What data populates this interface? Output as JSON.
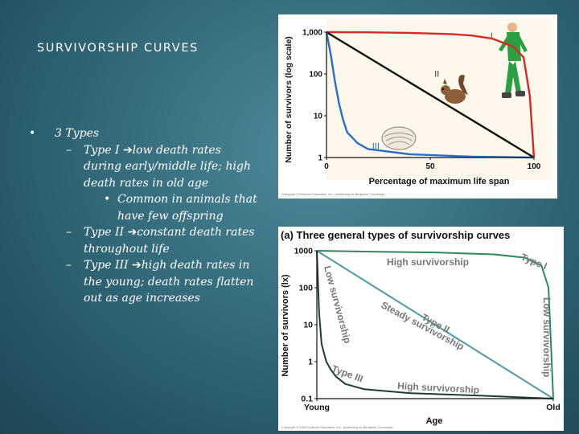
{
  "slide": {
    "title": "SURVIVORSHIP CURVES",
    "bullets": [
      {
        "level": 1,
        "text": "3 Types"
      },
      {
        "level": 2,
        "lead": "Type I",
        "text": "low death rates during early/middle life; high death rates in old age"
      },
      {
        "level": 3,
        "text": "Common in animals that have few offspring"
      },
      {
        "level": 2,
        "lead": "Type II",
        "text": "constant death rates throughout life"
      },
      {
        "level": 2,
        "lead": "Type III",
        "text": "high death rates in the young; death rates flatten out as age increases"
      }
    ]
  },
  "chart_data": [
    {
      "type": "line",
      "title": "",
      "xlabel": "Percentage of maximum life span",
      "ylabel": "Number of survivors (log scale)",
      "x_ticks": [
        "0",
        "50",
        "100"
      ],
      "y_ticks": [
        "1",
        "10",
        "100",
        "1,000"
      ],
      "yscale": "log",
      "xlim": [
        0,
        100
      ],
      "ylim": [
        1,
        1000
      ],
      "series": [
        {
          "name": "I",
          "color": "#d42a2a",
          "x": [
            0,
            20,
            40,
            60,
            70,
            80,
            90,
            95,
            98,
            100
          ],
          "y": [
            1000,
            990,
            960,
            900,
            830,
            700,
            450,
            250,
            30,
            1
          ]
        },
        {
          "name": "II",
          "color": "#111111",
          "x": [
            0,
            100
          ],
          "y": [
            1000,
            1
          ]
        },
        {
          "name": "III",
          "color": "#2a6fc9",
          "x": [
            0,
            2,
            4,
            6,
            8,
            10,
            15,
            20,
            40,
            70,
            100
          ],
          "y": [
            1000,
            300,
            70,
            20,
            8,
            4,
            2.2,
            1.6,
            1.2,
            1.05,
            1
          ]
        }
      ],
      "illustrations": [
        "human-runner",
        "squirrel",
        "oyster-shell"
      ],
      "credit": "Copyright © Pearson Education, Inc., publishing as Benjamin Cummings."
    },
    {
      "type": "line",
      "title": "(a) Three general types of survivorship curves",
      "xlabel": "Age",
      "ylabel": "Number of survivors (lx)",
      "x_ticks": [
        "Young",
        "Old"
      ],
      "y_ticks": [
        "0.1",
        "1",
        "10",
        "100",
        "1000"
      ],
      "yscale": "log",
      "xlim": [
        0,
        100
      ],
      "ylim": [
        0.1,
        1000
      ],
      "series": [
        {
          "name": "Type I",
          "color": "#2e8b57",
          "x": [
            0,
            20,
            50,
            75,
            88,
            95,
            98,
            100
          ],
          "y": [
            1000,
            950,
            900,
            800,
            650,
            400,
            100,
            0.1
          ]
        },
        {
          "name": "Type II",
          "color": "#4f9aa6",
          "x": [
            0,
            100
          ],
          "y": [
            1000,
            0.1
          ]
        },
        {
          "name": "Type III",
          "color": "#1f3d2f",
          "x": [
            0,
            1,
            2,
            4,
            6,
            8,
            12,
            20,
            40,
            70,
            100
          ],
          "y": [
            1000,
            20,
            3,
            1,
            0.6,
            0.4,
            0.25,
            0.18,
            0.14,
            0.12,
            0.1
          ]
        }
      ],
      "annotations": [
        "High survivorship",
        "Low survivorship",
        "Steady survivorship",
        "Low survivorship",
        "High survivorship"
      ],
      "credit": "Copyright © 2004 Pearson Education, Inc., publishing as Benjamin Cummings."
    }
  ]
}
